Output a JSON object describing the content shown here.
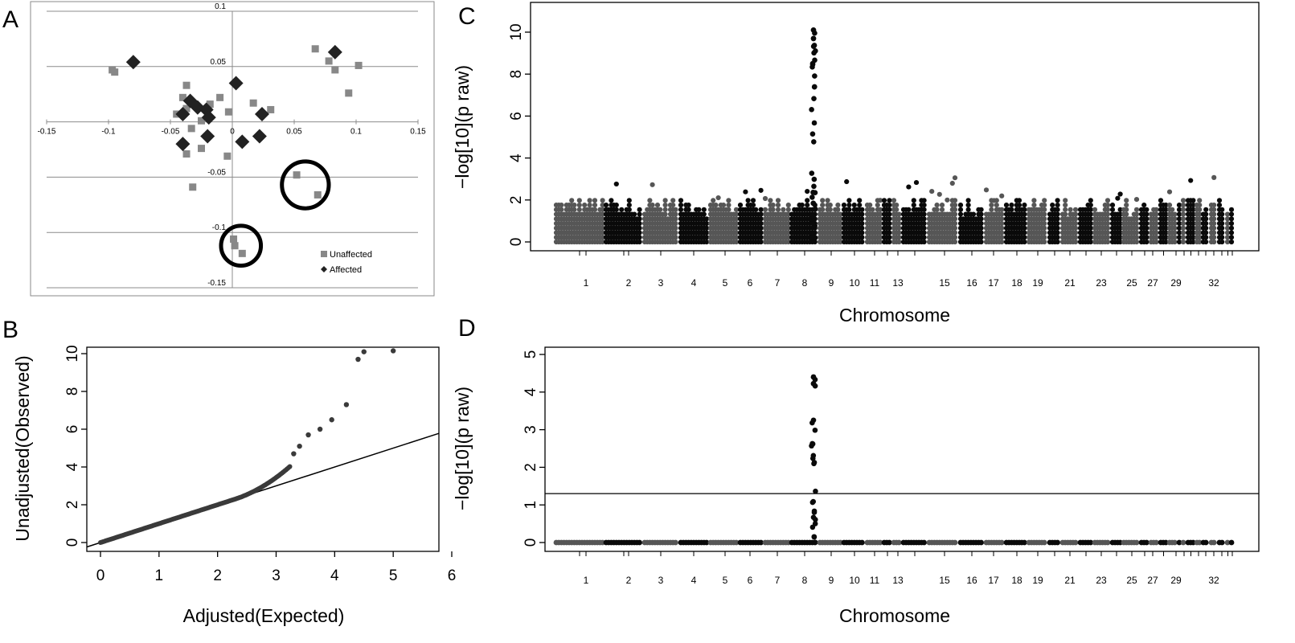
{
  "panels": {
    "A": {
      "letter": "A"
    },
    "B": {
      "letter": "B"
    },
    "C": {
      "letter": "C"
    },
    "D": {
      "letter": "D"
    }
  },
  "colors": {
    "affected": "#222222",
    "unaffected": "#888888",
    "chr_dark": "#0a0a0a",
    "chr_grey": "#565656"
  },
  "chart_data": [
    {
      "id": "A",
      "type": "scatter",
      "title": "",
      "xlabel": "",
      "ylabel": "",
      "xlim": [
        -0.15,
        0.15
      ],
      "ylim": [
        -0.15,
        0.1
      ],
      "grid": true,
      "x_ticks": [
        "-0.15",
        "-0.1",
        "-0.05",
        "0",
        "0.05",
        "0.1",
        "0.15"
      ],
      "y_ticks": [
        "0.1",
        "0.05",
        "-0.05",
        "-0.1",
        "-0.15"
      ],
      "legend": {
        "position": "bottom-right",
        "entries": [
          "Unaffected",
          "Affected"
        ]
      },
      "series": [
        {
          "name": "Unaffected",
          "marker": "square",
          "points": [
            [
              -0.097,
              0.047
            ],
            [
              -0.095,
              0.045
            ],
            [
              0.067,
              0.066
            ],
            [
              0.078,
              0.055
            ],
            [
              0.083,
              0.047
            ],
            [
              0.102,
              0.051
            ],
            [
              0.094,
              0.026
            ],
            [
              -0.037,
              0.033
            ],
            [
              -0.04,
              0.022
            ],
            [
              -0.037,
              0.012
            ],
            [
              -0.045,
              0.007
            ],
            [
              -0.025,
              0.001
            ],
            [
              -0.018,
              0.016
            ],
            [
              -0.01,
              0.022
            ],
            [
              0.017,
              0.017
            ],
            [
              0.031,
              0.011
            ],
            [
              -0.003,
              0.009
            ],
            [
              -0.025,
              -0.024
            ],
            [
              -0.037,
              -0.029
            ],
            [
              -0.004,
              -0.031
            ],
            [
              -0.033,
              -0.006
            ],
            [
              -0.032,
              -0.059
            ],
            [
              0.052,
              -0.048
            ],
            [
              0.069,
              -0.066
            ],
            [
              0.001,
              -0.106
            ],
            [
              0.002,
              -0.112
            ],
            [
              0.008,
              -0.119
            ]
          ]
        },
        {
          "name": "Affected",
          "marker": "diamond",
          "points": [
            [
              -0.08,
              0.054
            ],
            [
              0.083,
              0.063
            ],
            [
              -0.034,
              0.019
            ],
            [
              -0.028,
              0.013
            ],
            [
              -0.04,
              0.007
            ],
            [
              -0.021,
              0.011
            ],
            [
              -0.019,
              0.004
            ],
            [
              0.003,
              0.035
            ],
            [
              0.024,
              0.007
            ],
            [
              -0.04,
              -0.02
            ],
            [
              -0.02,
              -0.013
            ],
            [
              0.008,
              -0.018
            ],
            [
              0.022,
              -0.013
            ]
          ]
        }
      ],
      "annotations": [
        {
          "shape": "circle",
          "cx": 0.059,
          "cy": -0.057,
          "r": 0.02
        },
        {
          "shape": "circle",
          "cx": 0.007,
          "cy": -0.112,
          "r": 0.017
        }
      ]
    },
    {
      "id": "B",
      "type": "scatter",
      "title": "",
      "xlabel": "Adjusted(Expected)",
      "ylabel": "Unadjusted(Observed)",
      "xlim": [
        0,
        6
      ],
      "ylim": [
        0,
        10
      ],
      "x_ticks": [
        "0",
        "1",
        "2",
        "3",
        "4",
        "5",
        "6"
      ],
      "y_ticks": [
        "0",
        "2",
        "4",
        "6",
        "8",
        "10"
      ],
      "reference_line": {
        "slope": 1,
        "intercept": 0
      },
      "points": [
        [
          3.3,
          4.7
        ],
        [
          3.4,
          5.1
        ],
        [
          3.55,
          5.7
        ],
        [
          3.75,
          6.0
        ],
        [
          3.95,
          6.5
        ],
        [
          4.2,
          7.3
        ],
        [
          4.4,
          9.7
        ],
        [
          4.5,
          10.1
        ],
        [
          5.0,
          10.15
        ]
      ]
    },
    {
      "id": "C",
      "type": "scatter",
      "subtype": "manhattan",
      "title": "",
      "xlabel": "Chromosome",
      "ylabel": "−log[10](p raw)",
      "ylim": [
        0,
        10.8
      ],
      "y_ticks": [
        "0",
        "2",
        "4",
        "6",
        "8",
        "10"
      ],
      "chromosome_labels": [
        "1",
        "2",
        "3",
        "4",
        "5",
        "6",
        "7",
        "8",
        "9",
        "10",
        "11",
        "13",
        "15",
        "16",
        "17",
        "18",
        "19",
        "21",
        "23",
        "25",
        "27",
        "29",
        "32"
      ],
      "chromosomes": 38,
      "peak": {
        "chromosome": 8,
        "max_value": 10.1
      },
      "baseline_max": 2.5
    },
    {
      "id": "D",
      "type": "scatter",
      "subtype": "manhattan",
      "title": "",
      "xlabel": "Chromosome",
      "ylabel": "−log[10](p raw)",
      "ylim": [
        0,
        5.0
      ],
      "y_ticks": [
        "0",
        "1",
        "2",
        "3",
        "4",
        "5"
      ],
      "threshold": 1.3,
      "chromosome_labels": [
        "1",
        "2",
        "3",
        "4",
        "5",
        "6",
        "7",
        "8",
        "9",
        "10",
        "11",
        "13",
        "15",
        "16",
        "17",
        "18",
        "19",
        "21",
        "23",
        "25",
        "27",
        "29",
        "32"
      ],
      "chromosomes": 38,
      "peak": {
        "chromosome": 8,
        "max_value": 4.4
      },
      "baseline_max": 0.1
    }
  ]
}
